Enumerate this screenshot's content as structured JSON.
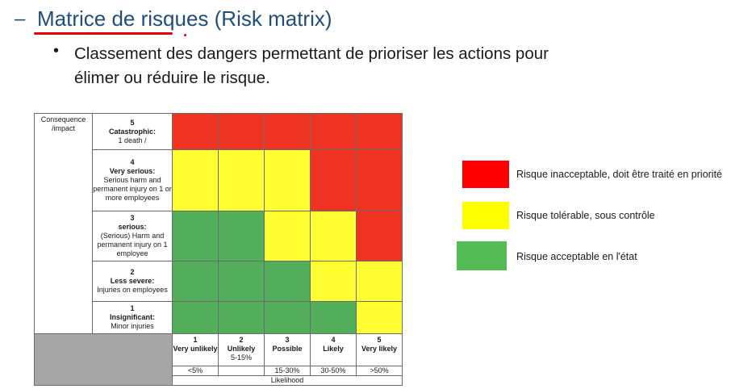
{
  "slide": {
    "dash": "–",
    "title": "Matrice de risques (Risk matrix)",
    "bullet": "•",
    "bullet_text": "Classement des dangers permettant de prioriser les actions pour élimer ou réduire le risque."
  },
  "matrix": {
    "header": "Consequence /impact",
    "severity": [
      {
        "num": "5",
        "label": "Catastrophic:",
        "desc": "1 death /"
      },
      {
        "num": "4",
        "label": "Very serious:",
        "desc": "Serious harm and permanent injury on 1 or more employees"
      },
      {
        "num": "3",
        "label": "serious:",
        "desc": "(Serious) Harm and permanent injury on 1 employee"
      },
      {
        "num": "2",
        "label": "Less severe:",
        "desc": "Injuries on employees"
      },
      {
        "num": "1",
        "label": "Insignificant:",
        "desc": "Minor injuries"
      }
    ],
    "likelihood": [
      {
        "num": "1",
        "label": "Very unlikely",
        "pct": "<5%"
      },
      {
        "num": "2",
        "label": "Unlikely",
        "pct": "5-15%"
      },
      {
        "num": "3",
        "label": "Possible",
        "pct": "15-30%"
      },
      {
        "num": "4",
        "label": "Likely",
        "pct": "30-50%"
      },
      {
        "num": "5",
        "label": "Very likely",
        "pct": ">50%"
      }
    ],
    "likelihood_title": "Likelihood",
    "grid": [
      [
        "red",
        "red",
        "red",
        "red",
        "red"
      ],
      [
        "yellow",
        "yellow",
        "yellow",
        "red",
        "red"
      ],
      [
        "green",
        "green",
        "yellow",
        "yellow",
        "red"
      ],
      [
        "green",
        "green",
        "green",
        "yellow",
        "yellow"
      ],
      [
        "green",
        "green",
        "green",
        "green",
        "yellow"
      ]
    ],
    "colors": {
      "red": "#ee3323",
      "yellow": "#ffff33",
      "green": "#52ae5a",
      "grey": "#a6a6a6"
    }
  },
  "legend": [
    {
      "color": "#ff0000",
      "text": "Risque inacceptable, doit être traité en priorité"
    },
    {
      "color": "#ffff00",
      "text": "Risque tolérable, sous contrôle"
    },
    {
      "color": "#55bb55",
      "text": "Risque acceptable en l'état"
    }
  ]
}
